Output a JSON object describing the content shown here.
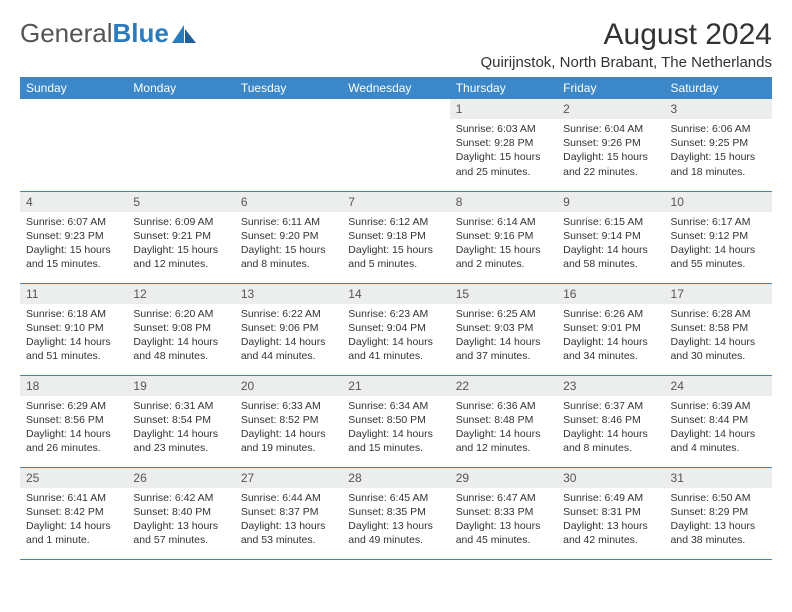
{
  "brand": {
    "word1": "General",
    "word2": "Blue"
  },
  "title": "August 2024",
  "location": "Quirijnstok, North Brabant, The Netherlands",
  "colors": {
    "header_bg": "#3b87c8",
    "daynum_bg": "#eceded",
    "rule": "#3b87c8"
  },
  "fonts": {
    "title_pt": 30,
    "location_pt": 15,
    "th_pt": 12,
    "daynum_pt": 12,
    "body_pt": 10.5
  },
  "day_headers": [
    "Sunday",
    "Monday",
    "Tuesday",
    "Wednesday",
    "Thursday",
    "Friday",
    "Saturday"
  ],
  "weeks": [
    [
      {
        "num": "",
        "sunrise": "",
        "sunset": "",
        "daylight": "",
        "empty": true
      },
      {
        "num": "",
        "sunrise": "",
        "sunset": "",
        "daylight": "",
        "empty": true
      },
      {
        "num": "",
        "sunrise": "",
        "sunset": "",
        "daylight": "",
        "empty": true
      },
      {
        "num": "",
        "sunrise": "",
        "sunset": "",
        "daylight": "",
        "empty": true
      },
      {
        "num": "1",
        "sunrise": "Sunrise: 6:03 AM",
        "sunset": "Sunset: 9:28 PM",
        "daylight": "Daylight: 15 hours and 25 minutes."
      },
      {
        "num": "2",
        "sunrise": "Sunrise: 6:04 AM",
        "sunset": "Sunset: 9:26 PM",
        "daylight": "Daylight: 15 hours and 22 minutes."
      },
      {
        "num": "3",
        "sunrise": "Sunrise: 6:06 AM",
        "sunset": "Sunset: 9:25 PM",
        "daylight": "Daylight: 15 hours and 18 minutes."
      }
    ],
    [
      {
        "num": "4",
        "sunrise": "Sunrise: 6:07 AM",
        "sunset": "Sunset: 9:23 PM",
        "daylight": "Daylight: 15 hours and 15 minutes."
      },
      {
        "num": "5",
        "sunrise": "Sunrise: 6:09 AM",
        "sunset": "Sunset: 9:21 PM",
        "daylight": "Daylight: 15 hours and 12 minutes."
      },
      {
        "num": "6",
        "sunrise": "Sunrise: 6:11 AM",
        "sunset": "Sunset: 9:20 PM",
        "daylight": "Daylight: 15 hours and 8 minutes."
      },
      {
        "num": "7",
        "sunrise": "Sunrise: 6:12 AM",
        "sunset": "Sunset: 9:18 PM",
        "daylight": "Daylight: 15 hours and 5 minutes."
      },
      {
        "num": "8",
        "sunrise": "Sunrise: 6:14 AM",
        "sunset": "Sunset: 9:16 PM",
        "daylight": "Daylight: 15 hours and 2 minutes."
      },
      {
        "num": "9",
        "sunrise": "Sunrise: 6:15 AM",
        "sunset": "Sunset: 9:14 PM",
        "daylight": "Daylight: 14 hours and 58 minutes."
      },
      {
        "num": "10",
        "sunrise": "Sunrise: 6:17 AM",
        "sunset": "Sunset: 9:12 PM",
        "daylight": "Daylight: 14 hours and 55 minutes."
      }
    ],
    [
      {
        "num": "11",
        "sunrise": "Sunrise: 6:18 AM",
        "sunset": "Sunset: 9:10 PM",
        "daylight": "Daylight: 14 hours and 51 minutes."
      },
      {
        "num": "12",
        "sunrise": "Sunrise: 6:20 AM",
        "sunset": "Sunset: 9:08 PM",
        "daylight": "Daylight: 14 hours and 48 minutes."
      },
      {
        "num": "13",
        "sunrise": "Sunrise: 6:22 AM",
        "sunset": "Sunset: 9:06 PM",
        "daylight": "Daylight: 14 hours and 44 minutes."
      },
      {
        "num": "14",
        "sunrise": "Sunrise: 6:23 AM",
        "sunset": "Sunset: 9:04 PM",
        "daylight": "Daylight: 14 hours and 41 minutes."
      },
      {
        "num": "15",
        "sunrise": "Sunrise: 6:25 AM",
        "sunset": "Sunset: 9:03 PM",
        "daylight": "Daylight: 14 hours and 37 minutes."
      },
      {
        "num": "16",
        "sunrise": "Sunrise: 6:26 AM",
        "sunset": "Sunset: 9:01 PM",
        "daylight": "Daylight: 14 hours and 34 minutes."
      },
      {
        "num": "17",
        "sunrise": "Sunrise: 6:28 AM",
        "sunset": "Sunset: 8:58 PM",
        "daylight": "Daylight: 14 hours and 30 minutes."
      }
    ],
    [
      {
        "num": "18",
        "sunrise": "Sunrise: 6:29 AM",
        "sunset": "Sunset: 8:56 PM",
        "daylight": "Daylight: 14 hours and 26 minutes."
      },
      {
        "num": "19",
        "sunrise": "Sunrise: 6:31 AM",
        "sunset": "Sunset: 8:54 PM",
        "daylight": "Daylight: 14 hours and 23 minutes."
      },
      {
        "num": "20",
        "sunrise": "Sunrise: 6:33 AM",
        "sunset": "Sunset: 8:52 PM",
        "daylight": "Daylight: 14 hours and 19 minutes."
      },
      {
        "num": "21",
        "sunrise": "Sunrise: 6:34 AM",
        "sunset": "Sunset: 8:50 PM",
        "daylight": "Daylight: 14 hours and 15 minutes."
      },
      {
        "num": "22",
        "sunrise": "Sunrise: 6:36 AM",
        "sunset": "Sunset: 8:48 PM",
        "daylight": "Daylight: 14 hours and 12 minutes."
      },
      {
        "num": "23",
        "sunrise": "Sunrise: 6:37 AM",
        "sunset": "Sunset: 8:46 PM",
        "daylight": "Daylight: 14 hours and 8 minutes."
      },
      {
        "num": "24",
        "sunrise": "Sunrise: 6:39 AM",
        "sunset": "Sunset: 8:44 PM",
        "daylight": "Daylight: 14 hours and 4 minutes."
      }
    ],
    [
      {
        "num": "25",
        "sunrise": "Sunrise: 6:41 AM",
        "sunset": "Sunset: 8:42 PM",
        "daylight": "Daylight: 14 hours and 1 minute."
      },
      {
        "num": "26",
        "sunrise": "Sunrise: 6:42 AM",
        "sunset": "Sunset: 8:40 PM",
        "daylight": "Daylight: 13 hours and 57 minutes."
      },
      {
        "num": "27",
        "sunrise": "Sunrise: 6:44 AM",
        "sunset": "Sunset: 8:37 PM",
        "daylight": "Daylight: 13 hours and 53 minutes."
      },
      {
        "num": "28",
        "sunrise": "Sunrise: 6:45 AM",
        "sunset": "Sunset: 8:35 PM",
        "daylight": "Daylight: 13 hours and 49 minutes."
      },
      {
        "num": "29",
        "sunrise": "Sunrise: 6:47 AM",
        "sunset": "Sunset: 8:33 PM",
        "daylight": "Daylight: 13 hours and 45 minutes."
      },
      {
        "num": "30",
        "sunrise": "Sunrise: 6:49 AM",
        "sunset": "Sunset: 8:31 PM",
        "daylight": "Daylight: 13 hours and 42 minutes."
      },
      {
        "num": "31",
        "sunrise": "Sunrise: 6:50 AM",
        "sunset": "Sunset: 8:29 PM",
        "daylight": "Daylight: 13 hours and 38 minutes."
      }
    ]
  ]
}
